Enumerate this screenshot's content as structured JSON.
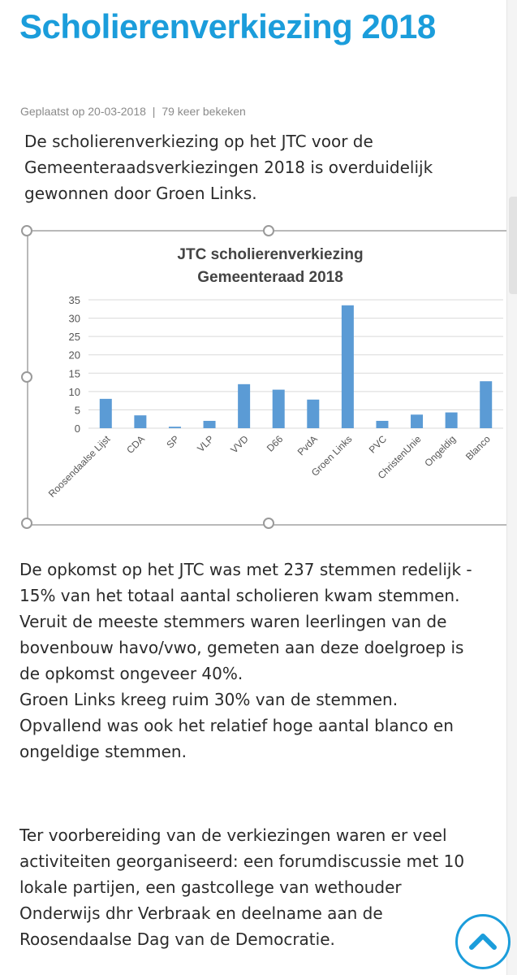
{
  "article": {
    "title": "Scholierenverkiezing 2018",
    "meta_posted": "Geplaatst op 20-03-2018",
    "meta_separator": "|",
    "meta_views": "79 keer bekeken",
    "intro": "De scholierenverkiezing op het JTC voor de Gemeenteraadsverkiezingen 2018 is overduidelijk gewonnen door Groen Links.",
    "paragraph2": "De opkomst op het JTC was met 237 stemmen redelijk - 15% van het  totaal aantal scholieren kwam stemmen. Veruit de meeste stemmers waren leerlingen van de bovenbouw havo/vwo, gemeten aan deze doelgroep is de opkomst ongeveer 40%.\nGroen Links kreeg ruim 30% van de stemmen. Opvallend was ook het relatief hoge aantal blanco en ongeldige stemmen.",
    "paragraph3": "Ter voorbereiding van de verkiezingen waren er veel activiteiten georganiseerd: een forumdiscussie met 10 lokale partijen, een gastcollege van wethouder Onderwijs dhr Verbraak en deelname aan de Roosendaalse Dag van de Democratie."
  },
  "colors": {
    "title": "#1b9ddb",
    "bar": "#5b9bd5",
    "gridline": "#d9d9d9",
    "scroll_button": "#1b9ddb"
  },
  "icons": {
    "scroll_top": "chevron-up-icon"
  },
  "chart_data": {
    "type": "bar",
    "title": "JTC scholierenverkiezing",
    "subtitle": "Gemeenteraad 2018",
    "categories": [
      "Roosendaalse Lijst",
      "CDA",
      "SP",
      "VLP",
      "VVD",
      "D66",
      "PvdA",
      "Groen Links",
      "PVC",
      "ChristenUnie",
      "Ongeldig",
      "Blanco"
    ],
    "values": [
      8,
      3.5,
      0.4,
      2,
      12,
      10.5,
      7.8,
      33.5,
      2,
      3.7,
      4.3,
      12.8
    ],
    "yticks": [
      0,
      5,
      10,
      15,
      20,
      25,
      30,
      35
    ],
    "ylim": [
      0,
      35
    ],
    "grid": true,
    "xlabel": "",
    "ylabel": ""
  }
}
